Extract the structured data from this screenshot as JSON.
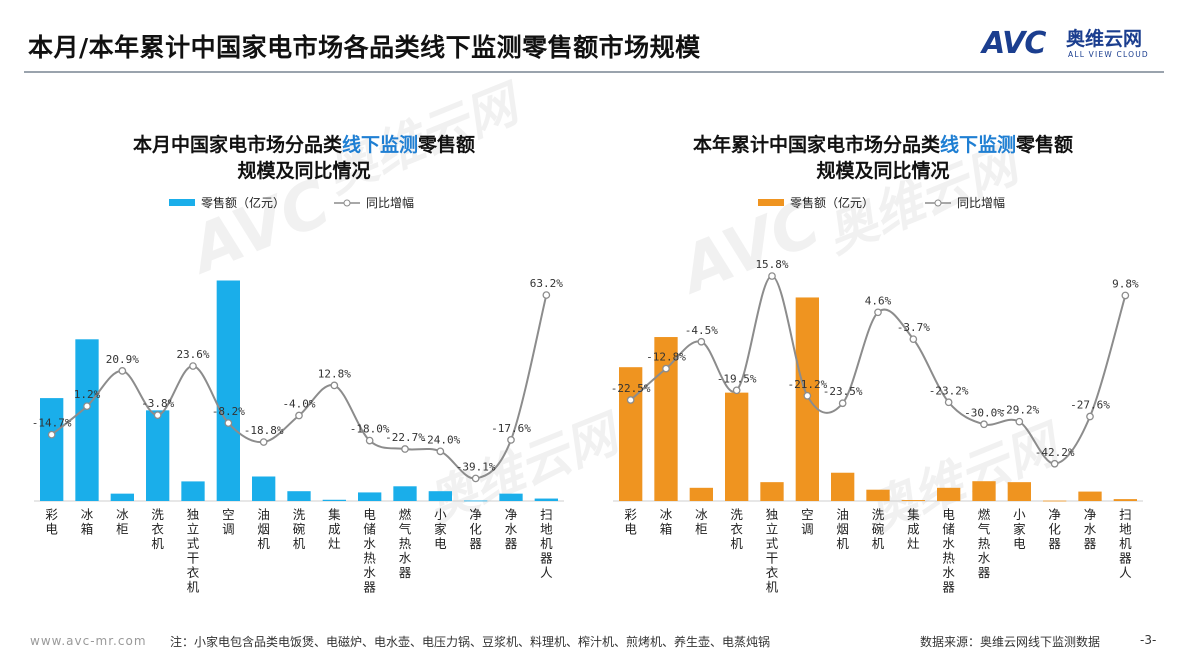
{
  "page": {
    "title": "本月/本年累计中国家电市场各品类线下监测零售额市场规模",
    "logo": {
      "mark": "AVC",
      "cn": "奥维云网",
      "en": "ALL VIEW CLOUD"
    },
    "watermark": {
      "mark": "AVC",
      "cn": "奥维云网",
      "en": "ALL VIEW CLOUD"
    },
    "footer": {
      "website": "www.avc-mr.com",
      "note": "注：小家电包含品类电饭煲、电磁炉、电水壶、电压力锅、豆浆机、料理机、榨汁机、煎烤机、养生壶、电蒸炖锅",
      "source": "数据来源：奥维云网线下监测数据",
      "page_number": "-3-"
    },
    "colors": {
      "monthly_bar": "#1aaeea",
      "ytd_bar": "#ef9420",
      "line": "#8c8c8c",
      "highlight": "#1f7fd3"
    }
  },
  "chart_data": [
    {
      "type": "bar",
      "title_parts": [
        "本月中国家电市场分品类",
        "线下监测",
        "零售额"
      ],
      "title_line2": "规模及同比情况",
      "categories": [
        "彩电",
        "冰箱",
        "冰柜",
        "洗衣机",
        "独立式干衣机",
        "空调",
        "油烟机",
        "洗碗机",
        "集成灶",
        "电储水热水器",
        "燃气热水器",
        "小家电",
        "净化器",
        "净水器",
        "扫地机器人"
      ],
      "series": [
        {
          "name": "零售额（亿元）",
          "kind": "bar",
          "values": [
            42,
            66,
            3,
            37,
            8,
            90,
            10,
            4,
            0.5,
            3.5,
            6,
            4,
            0.2,
            3,
            1
          ]
        },
        {
          "name": "同比增幅",
          "kind": "line",
          "values": [
            -14.7,
            1.2,
            20.9,
            -3.8,
            23.6,
            -8.2,
            -18.8,
            -4.0,
            12.8,
            -18.0,
            -22.7,
            -24.0,
            -39.1,
            -17.6,
            63.2
          ],
          "labels": [
            "-14.7%",
            "1.2%",
            "20.9%",
            "-3.8%",
            "23.6%",
            "-8.2%",
            "-18.8%",
            "-4.0%",
            "12.8%",
            "-18.0%",
            "-22.7%",
            "-24.0%",
            "-39.1%",
            "-17.6%",
            "63.2%"
          ]
        }
      ],
      "bar_ylim": [
        0,
        100
      ],
      "line_ylim": [
        -45,
        85
      ],
      "legend_position": "top"
    },
    {
      "type": "bar",
      "title_parts": [
        "本年累计中国家电市场分品类",
        "线下监测",
        "零售额"
      ],
      "title_line2": "规模及同比情况",
      "categories": [
        "彩电",
        "冰箱",
        "冰柜",
        "洗衣机",
        "独立式干衣机",
        "空调",
        "油烟机",
        "洗碗机",
        "集成灶",
        "电储水热水器",
        "燃气热水器",
        "小家电",
        "净化器",
        "净水器",
        "扫地机器人"
      ],
      "series": [
        {
          "name": "零售额（亿元）",
          "kind": "bar",
          "values": [
            710,
            870,
            70,
            575,
            100,
            1080,
            150,
            60,
            5,
            70,
            105,
            100,
            2,
            50,
            10
          ]
        },
        {
          "name": "同比增幅",
          "kind": "line",
          "values": [
            -22.5,
            -12.8,
            -4.5,
            -19.5,
            15.8,
            -21.2,
            -23.5,
            4.6,
            -3.7,
            -23.2,
            -30.0,
            -29.2,
            -42.2,
            -27.6,
            9.8
          ],
          "labels": [
            "-22.5%",
            "-12.8%",
            "-4.5%",
            "-19.5%",
            "15.8%",
            "-21.2%",
            "-23.5%",
            "4.6%",
            "-3.7%",
            "-23.2%",
            "-30.0%",
            "-29.2%",
            "-42.2%",
            "-27.6%",
            "9.8%"
          ]
        }
      ],
      "bar_ylim": [
        0,
        1300
      ],
      "line_ylim": [
        -50,
        22
      ],
      "legend_position": "top"
    }
  ]
}
